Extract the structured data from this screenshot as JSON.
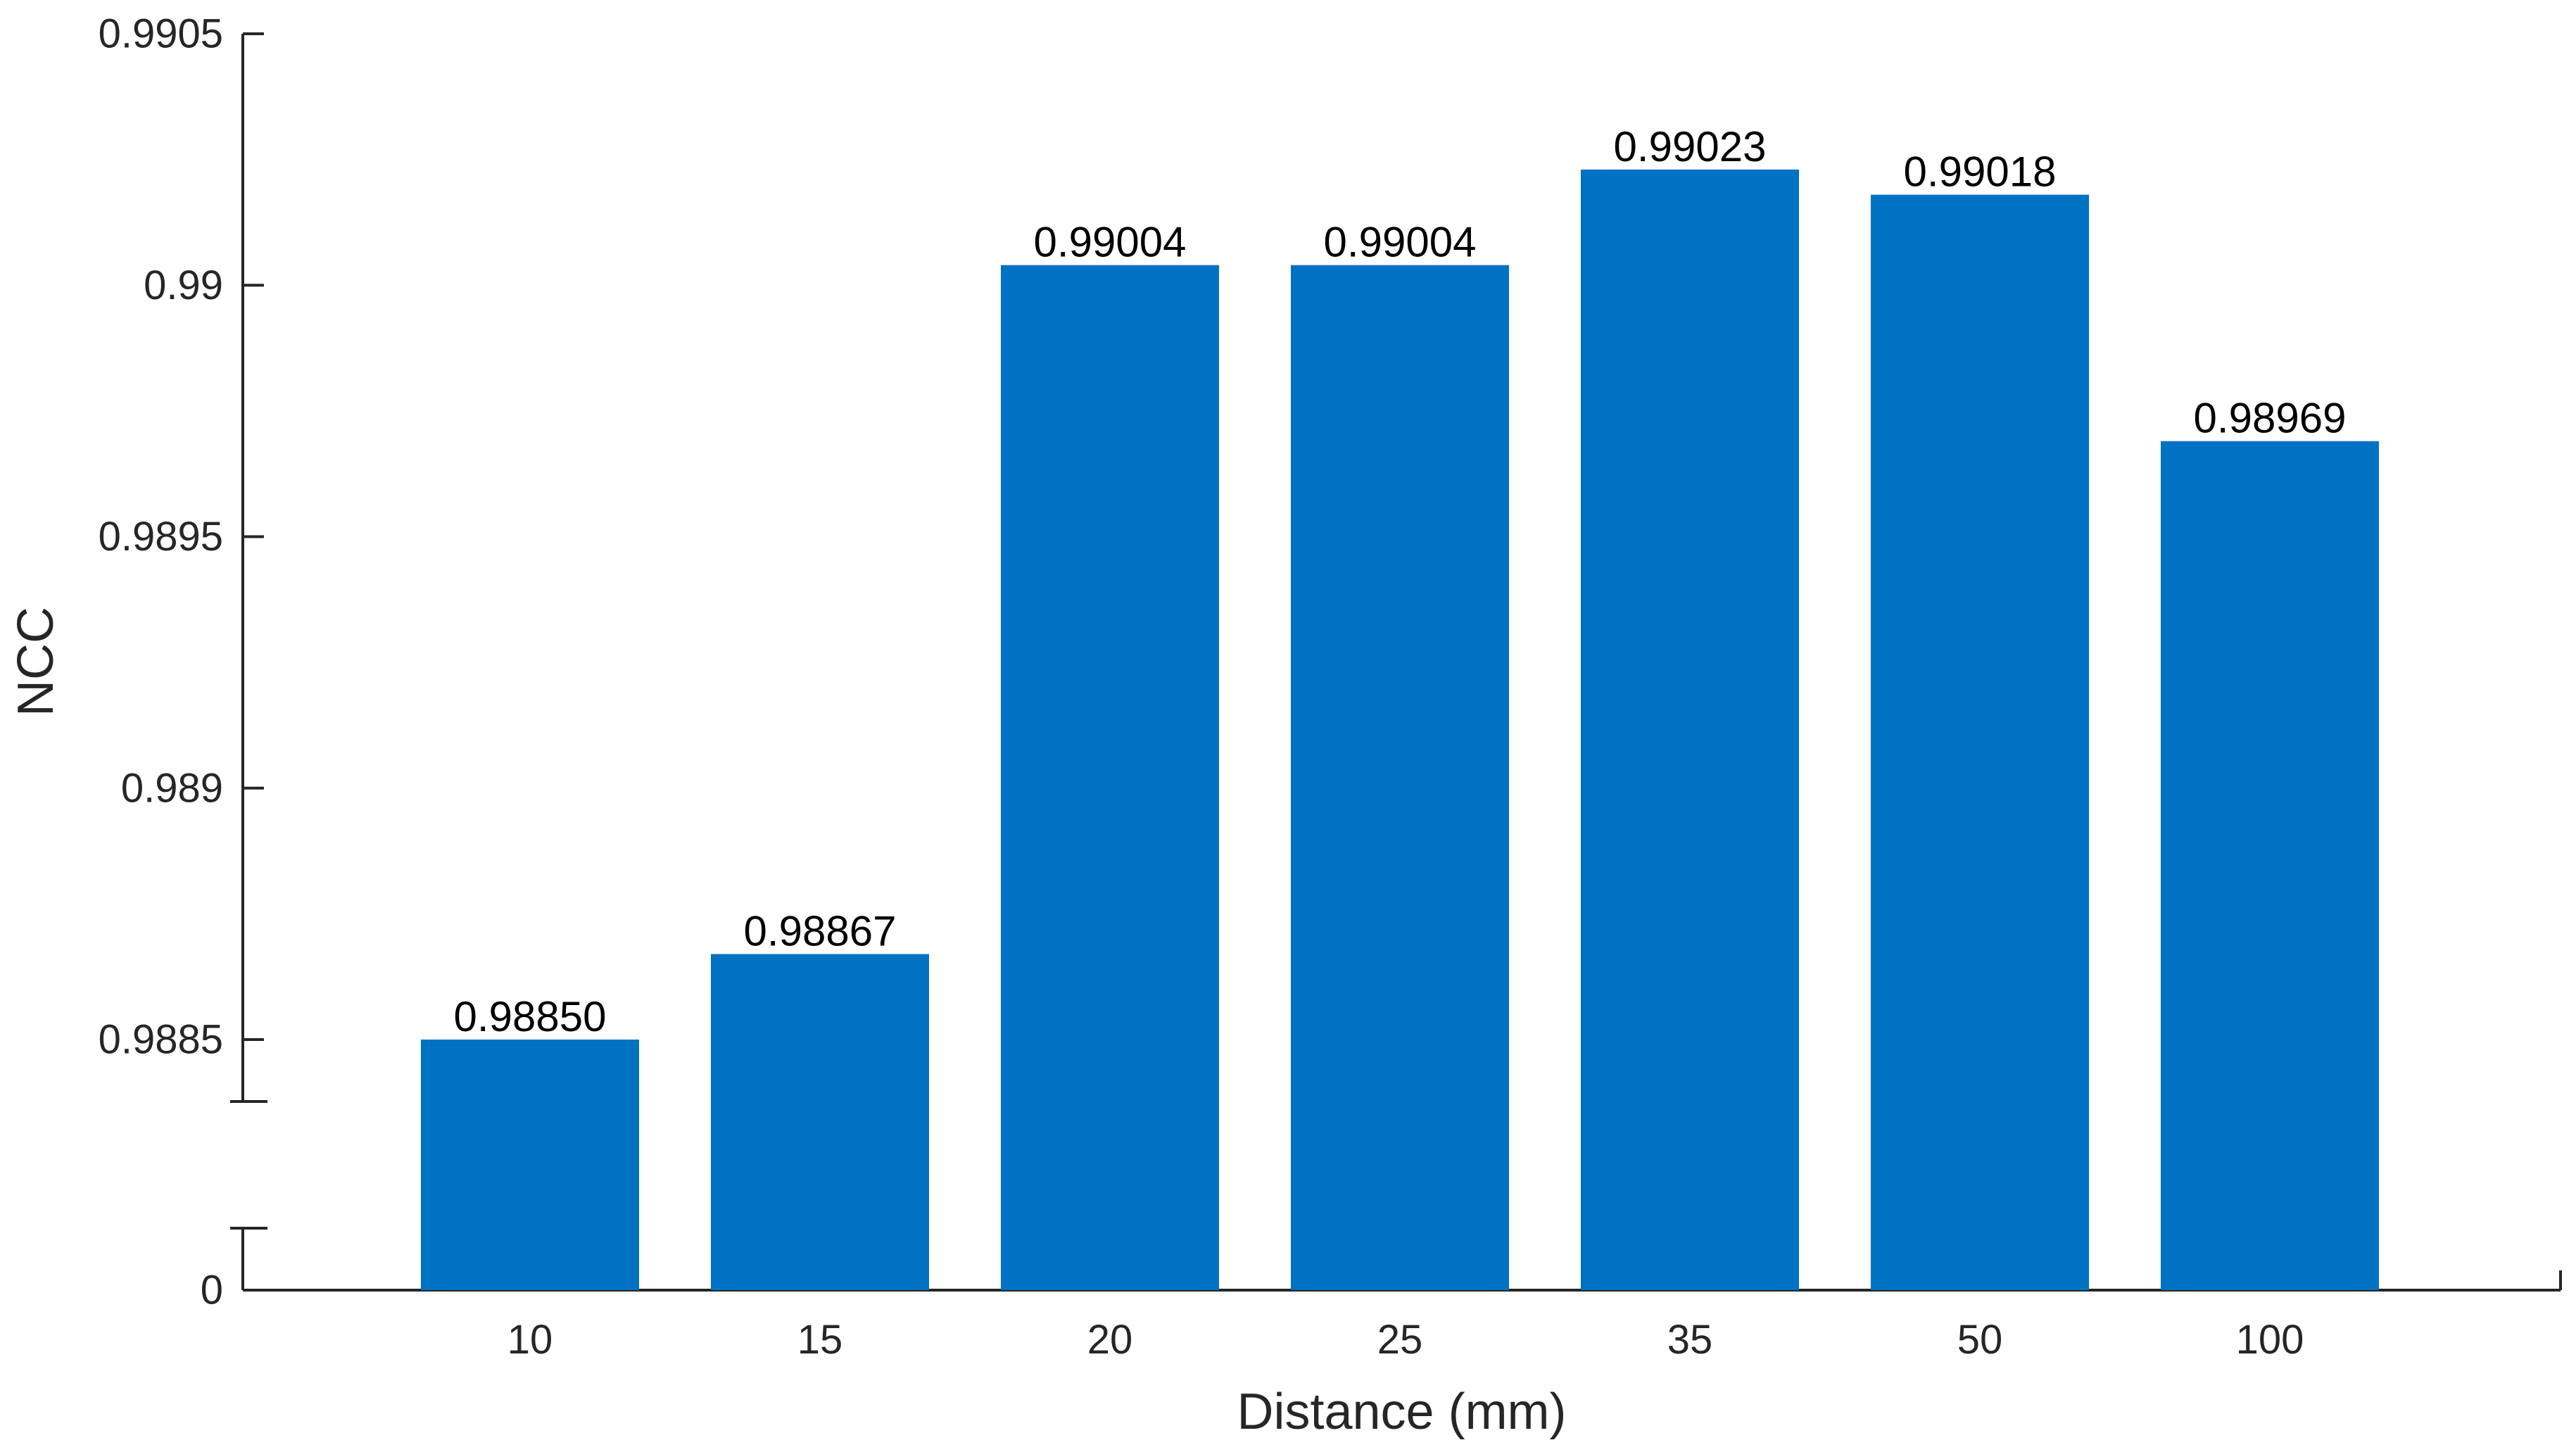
{
  "chart_data": {
    "type": "bar",
    "categories": [
      "10",
      "15",
      "20",
      "25",
      "35",
      "50",
      "100"
    ],
    "values": [
      0.9885,
      0.98867,
      0.99004,
      0.99004,
      0.99023,
      0.99018,
      0.98969
    ],
    "data_labels": [
      "0.98850",
      "0.98867",
      "0.99004",
      "0.99004",
      "0.99023",
      "0.99018",
      "0.98969"
    ],
    "xlabel": "Distance (mm)",
    "ylabel": "NCC",
    "ylim": [
      0.98837,
      0.9905
    ],
    "axis_break": true,
    "yticks": [
      {
        "value": 0.9905,
        "label": "0.9905"
      },
      {
        "value": 0.99,
        "label": "0.99"
      },
      {
        "value": 0.9895,
        "label": "0.9895"
      },
      {
        "value": 0.989,
        "label": "0.989"
      },
      {
        "value": 0.9885,
        "label": "0.9885"
      }
    ],
    "ybreak_bottom_label": "0",
    "bar_color": "#0072C3",
    "grid": false,
    "legend": "none"
  }
}
